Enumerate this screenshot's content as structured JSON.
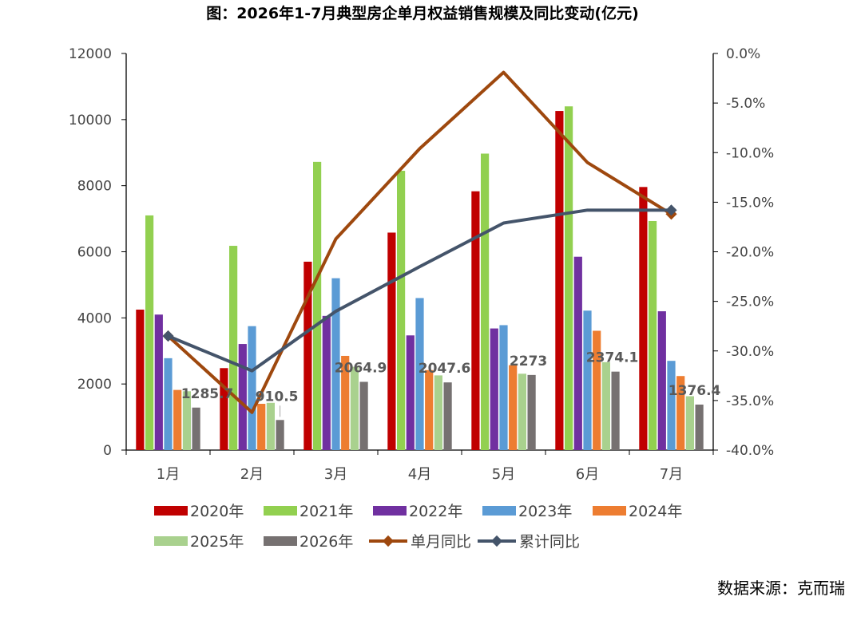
{
  "chart_data": {
    "type": "bar",
    "title": "图：2026年1-7月典型房企单月权益销售规模及同比变动(亿元)",
    "source": "数据来源：克而瑞",
    "categories": [
      "1月",
      "2月",
      "3月",
      "4月",
      "5月",
      "6月",
      "7月"
    ],
    "ylim": [
      0,
      12000
    ],
    "yticks": [
      "0",
      "2000",
      "4000",
      "6000",
      "8000",
      "10000",
      "12000"
    ],
    "y2lim": [
      -40,
      0
    ],
    "y2ticks": [
      "-40.0%",
      "-35.0%",
      "-30.0%",
      "-25.0%",
      "-20.0%",
      "-15.0%",
      "-10.0%",
      "-5.0%",
      "0.0%"
    ],
    "grid": false,
    "legend_position": "bottom",
    "series": [
      {
        "name": "2020年",
        "color": "#C00000",
        "values": [
          4250,
          2480,
          5700,
          6580,
          7830,
          10260,
          7960
        ]
      },
      {
        "name": "2021年",
        "color": "#92D050",
        "values": [
          7100,
          6180,
          8720,
          8450,
          8970,
          10400,
          6930
        ]
      },
      {
        "name": "2022年",
        "color": "#7030A0",
        "values": [
          4100,
          3210,
          4060,
          3470,
          3680,
          5850,
          4200
        ]
      },
      {
        "name": "2023年",
        "color": "#5B9BD5",
        "values": [
          2780,
          3750,
          5200,
          4600,
          3780,
          4220,
          2700
        ]
      },
      {
        "name": "2024年",
        "color": "#ED7D31",
        "values": [
          1820,
          1400,
          2850,
          2420,
          2570,
          3610,
          2240
        ]
      },
      {
        "name": "2025年",
        "color": "#A9D18E",
        "values": [
          1780,
          1430,
          2520,
          2260,
          2310,
          2660,
          1630
        ]
      },
      {
        "name": "2026年",
        "color": "#767171",
        "values": [
          1285.7,
          910.5,
          2064.9,
          2047.6,
          2273,
          2374.1,
          1376.4
        ]
      }
    ],
    "data_labels": [
      "1285.7",
      "910.5",
      "2064.9",
      "2047.6",
      "2273",
      "2374.1",
      "1376.4"
    ],
    "lines": [
      {
        "name": "单月同比",
        "color": "#9E480E",
        "values": [
          -28.5,
          -36.2,
          -18.7,
          -9.6,
          -1.9,
          -11.0,
          -16.2
        ]
      },
      {
        "name": "累计同比",
        "color": "#44546A",
        "values": [
          -28.5,
          -32.0,
          -26.0,
          -21.5,
          -17.1,
          -15.8,
          -15.8
        ]
      }
    ]
  }
}
